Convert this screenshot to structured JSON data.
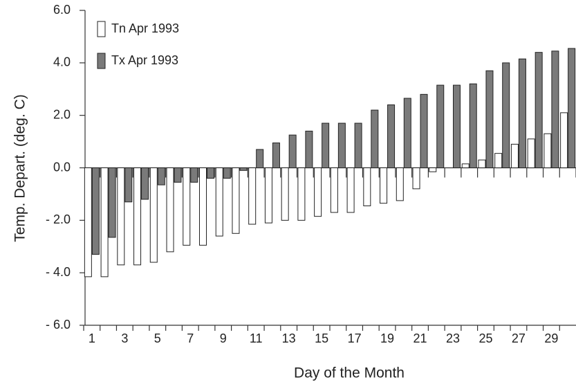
{
  "chart_data": {
    "type": "bar",
    "x_label": "Day of the Month",
    "y_label": "Temp. Depart. (deg. C)",
    "categories": [
      "1",
      null,
      "3",
      null,
      "5",
      null,
      "7",
      null,
      "9",
      null,
      "11",
      null,
      "13",
      null,
      "15",
      null,
      "17",
      null,
      "19",
      null,
      "21",
      null,
      "23",
      null,
      "25",
      null,
      "27",
      null,
      "29",
      null
    ],
    "series": [
      {
        "name": "Tn Apr 1993",
        "color": "#ffffff",
        "values": [
          -4.15,
          -4.15,
          -3.7,
          -3.7,
          -3.6,
          -3.2,
          -2.95,
          -2.95,
          -2.6,
          -2.5,
          -2.15,
          -2.1,
          -2.0,
          -2.0,
          -1.85,
          -1.7,
          -1.7,
          -1.45,
          -1.35,
          -1.25,
          -0.8,
          -0.15,
          0.0,
          0.15,
          0.3,
          0.55,
          0.9,
          1.1,
          1.3,
          2.1
        ]
      },
      {
        "name": "Tx Apr 1993",
        "color": "#7a7a7a",
        "values": [
          -3.3,
          -2.65,
          -1.3,
          -1.2,
          -0.65,
          -0.55,
          -0.55,
          -0.4,
          -0.4,
          -0.1,
          0.7,
          0.95,
          1.25,
          1.4,
          1.7,
          1.7,
          1.7,
          2.2,
          2.4,
          2.65,
          2.8,
          3.15,
          3.15,
          3.2,
          3.7,
          4.0,
          4.15,
          4.4,
          4.45,
          4.55
        ]
      }
    ],
    "ylim": [
      -6,
      6
    ],
    "yticks": [
      {
        "value": -6,
        "label": "- 6.0"
      },
      {
        "value": -4,
        "label": "- 4.0"
      },
      {
        "value": -2,
        "label": "- 2.0"
      },
      {
        "value": 0,
        "label": "0.0"
      },
      {
        "value": 2,
        "label": "2.0"
      },
      {
        "value": 4,
        "label": "4.0"
      },
      {
        "value": 6,
        "label": "6.0"
      }
    ],
    "legend": "upper-left"
  }
}
